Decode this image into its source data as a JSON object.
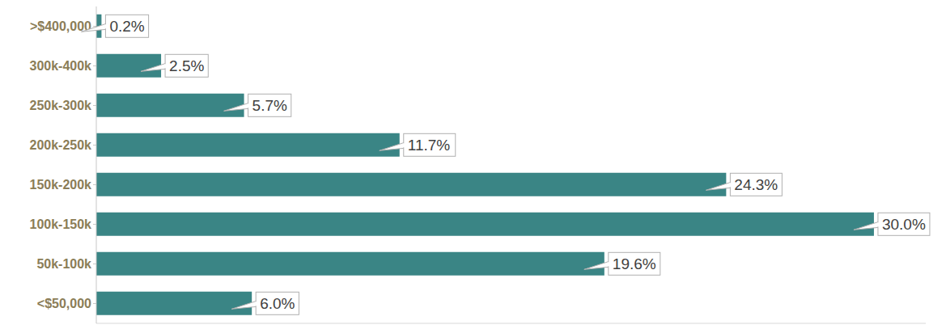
{
  "chart_data": {
    "type": "bar",
    "orientation": "horizontal",
    "categories": [
      ">$400,000",
      "300k-400k",
      "250k-300k",
      "200k-250k",
      "150k-200k",
      "100k-150k",
      "50k-100k",
      "<$50,000"
    ],
    "values": [
      0.2,
      2.5,
      5.7,
      11.7,
      24.3,
      30.0,
      19.6,
      6.0
    ],
    "value_labels": [
      "0.2%",
      "2.5%",
      "5.7%",
      "11.7%",
      "24.3%",
      "30.0%",
      "19.6%",
      "6.0%"
    ],
    "color": "#3a8585",
    "xlim": [
      0,
      32
    ],
    "data_labels": true,
    "tick_labels": "y",
    "grid": false
  }
}
